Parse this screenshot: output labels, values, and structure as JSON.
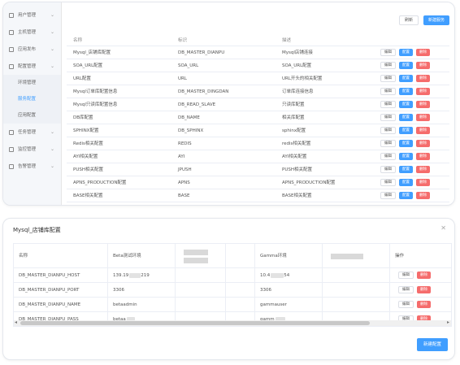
{
  "sidebar": {
    "items": [
      {
        "label": "用户管理",
        "icon": "grid-icon"
      },
      {
        "label": "主机管理",
        "icon": "host-icon"
      },
      {
        "label": "应用发布",
        "icon": "code-icon"
      },
      {
        "label": "配置管理",
        "icon": "config-icon"
      }
    ],
    "sub_items": [
      {
        "label": "环境管理",
        "active": false
      },
      {
        "label": "服务配置",
        "active": true
      },
      {
        "label": "应用配置",
        "active": false
      }
    ],
    "bottom_items": [
      {
        "label": "任务管理",
        "icon": "calendar-icon"
      },
      {
        "label": "监控管理",
        "icon": "monitor-icon"
      },
      {
        "label": "告警管理",
        "icon": "bell-icon"
      }
    ]
  },
  "toolbar": {
    "refresh_label": "刷新",
    "new_label": "新建服务"
  },
  "service_table": {
    "headers": [
      "名称",
      "标识",
      "描述"
    ],
    "rows": [
      [
        "Mysql_店铺库配置",
        "DB_MASTER_DIANPU",
        "Mysql店铺连接"
      ],
      [
        "SOA_URL配置",
        "SOA_URL",
        "SOA_URL配置"
      ],
      [
        "URL配置",
        "URL",
        "URL开头的相关配置"
      ],
      [
        "Mysql订单库配置信息",
        "DB_MASTER_DINGDAN",
        "订单库连接信息"
      ],
      [
        "Mysql只读库配置信息",
        "DB_READ_SLAVE",
        "只读库配置"
      ],
      [
        "DB库配置",
        "DB_NAME",
        "相关库配置"
      ],
      [
        "SPHINX配置",
        "DB_SPHINX",
        "sphinx配置"
      ],
      [
        "Redis相关配置",
        "REDIS",
        "redis相关配置"
      ],
      [
        "AYI相关配置",
        "AYI",
        "AYI相关配置"
      ],
      [
        "PUSH相关配置",
        "JPUSH",
        "PUSH相关配置"
      ],
      [
        "APNS_PRODUCTION配置",
        "APNS",
        "APNS_PRODUCTION配置"
      ],
      [
        "BASE相关配置",
        "BASE",
        "BASE相关配置"
      ]
    ],
    "edit_label": "编辑",
    "config_label": "配置",
    "delete_label": "删除"
  },
  "dialog": {
    "title": "Mysql_店铺库配置",
    "headers": {
      "key": "名称",
      "beta": "Beta测试环境",
      "gamma": "Gamma环境",
      "ops": "操作"
    },
    "rows": [
      {
        "key": "DB_MASTER_DIANPU_HOST",
        "beta": "139.19",
        "beta_tail": "219",
        "gamma": "10.4",
        "gamma_tail": "54"
      },
      {
        "key": "DB_MASTER_DIANPU_PORT",
        "beta": "3306",
        "beta_tail": "",
        "gamma": "3306",
        "gamma_tail": ""
      },
      {
        "key": "DB_MASTER_DIANPU_NAME",
        "beta": "betaadmin",
        "beta_tail": "",
        "gamma": "gammauser",
        "gamma_tail": ""
      },
      {
        "key": "DB_MASTER_DIANPU_PASS",
        "beta": "betaa",
        "beta_tail": "",
        "gamma": "gamm",
        "gamma_tail": ""
      }
    ],
    "edit_label": "编辑",
    "delete_label": "删除",
    "new_config_label": "新建配置"
  }
}
